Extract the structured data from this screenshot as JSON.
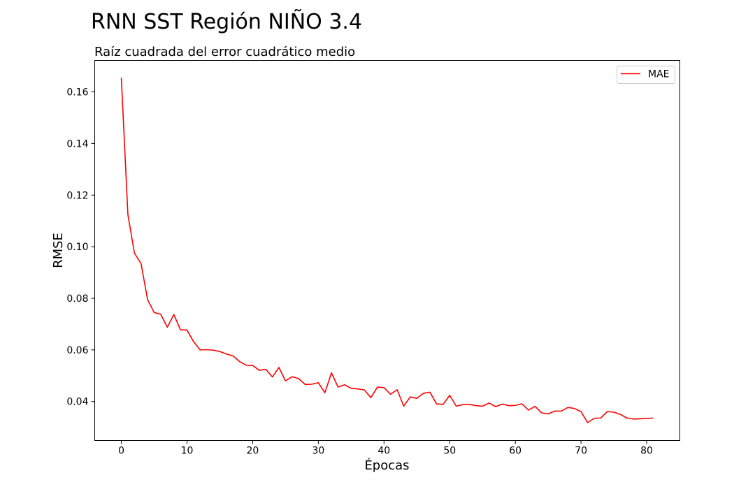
{
  "figure": {
    "suptitle": "RNN SST Región NIÑO 3.4"
  },
  "chart_data": {
    "type": "line",
    "title": "Raíz cuadrada del error cuadrático medio",
    "xlabel": "Épocas",
    "ylabel": "RMSE",
    "xlim": [
      -4.05,
      85.05
    ],
    "ylim": [
      0.0249,
      0.1722
    ],
    "xticks": [
      0,
      10,
      20,
      30,
      40,
      50,
      60,
      70,
      80
    ],
    "xtick_labels": [
      "0",
      "10",
      "20",
      "30",
      "40",
      "50",
      "60",
      "70",
      "80"
    ],
    "yticks": [
      0.04,
      0.06,
      0.08,
      0.1,
      0.12,
      0.14,
      0.16
    ],
    "ytick_labels": [
      "0.04",
      "0.06",
      "0.08",
      "0.10",
      "0.12",
      "0.14",
      "0.16"
    ],
    "grid": false,
    "legend_position": "upper right",
    "series": [
      {
        "name": "MAE",
        "color": "#ff0000",
        "x": [
          0,
          1,
          2,
          3,
          4,
          5,
          6,
          7,
          8,
          9,
          10,
          11,
          12,
          13,
          14,
          15,
          16,
          17,
          18,
          19,
          20,
          21,
          22,
          23,
          24,
          25,
          26,
          27,
          28,
          29,
          30,
          31,
          32,
          33,
          34,
          35,
          36,
          37,
          38,
          39,
          40,
          41,
          42,
          43,
          44,
          45,
          46,
          47,
          48,
          49,
          50,
          51,
          52,
          53,
          54,
          55,
          56,
          57,
          58,
          59,
          60,
          61,
          62,
          63,
          64,
          65,
          66,
          67,
          68,
          69,
          70,
          71,
          72,
          73,
          74,
          75,
          76,
          77,
          78,
          79,
          80,
          81
        ],
        "values": [
          0.1655,
          0.1125,
          0.0975,
          0.0935,
          0.0795,
          0.0745,
          0.0738,
          0.0688,
          0.0737,
          0.0678,
          0.0677,
          0.0632,
          0.06,
          0.0601,
          0.0599,
          0.0594,
          0.0584,
          0.0577,
          0.0555,
          0.0541,
          0.054,
          0.0521,
          0.0525,
          0.0495,
          0.0532,
          0.048,
          0.0496,
          0.0489,
          0.0466,
          0.0467,
          0.0473,
          0.0434,
          0.0511,
          0.0456,
          0.0465,
          0.0451,
          0.0449,
          0.0445,
          0.0415,
          0.0456,
          0.0454,
          0.0428,
          0.0446,
          0.0382,
          0.0418,
          0.0412,
          0.0432,
          0.0436,
          0.0391,
          0.0389,
          0.0424,
          0.0382,
          0.0388,
          0.0389,
          0.0384,
          0.0382,
          0.0394,
          0.038,
          0.039,
          0.0384,
          0.0385,
          0.0391,
          0.0367,
          0.0381,
          0.0356,
          0.0352,
          0.0363,
          0.0363,
          0.0377,
          0.0373,
          0.0361,
          0.0318,
          0.0335,
          0.0336,
          0.0361,
          0.0359,
          0.035,
          0.0336,
          0.0332,
          0.0333,
          0.0334,
          0.0336
        ]
      }
    ]
  }
}
